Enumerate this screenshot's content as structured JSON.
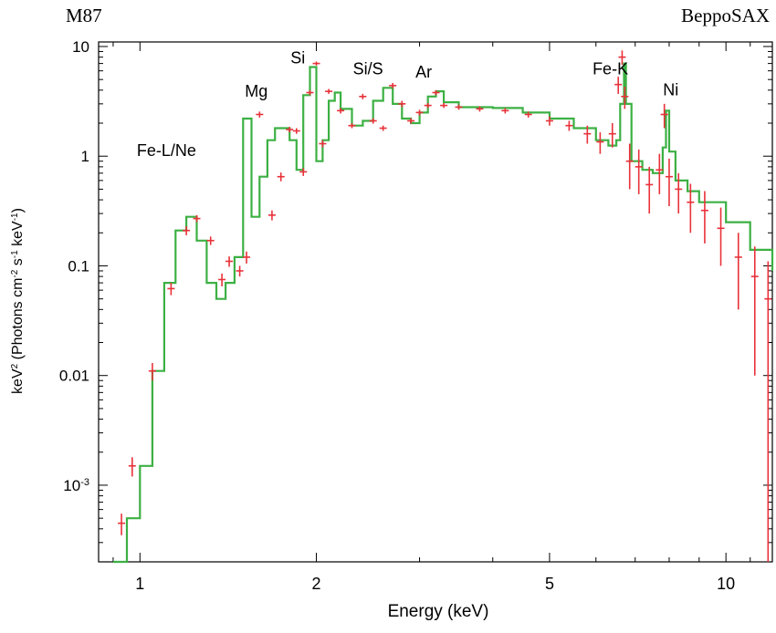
{
  "chart_data": {
    "type": "line",
    "title_left": "M87",
    "title_right": "BeppoSAX",
    "xlabel": "Energy (keV)",
    "ylabel": {
      "main": "keV² (Photons cm⁻² s⁻¹ keV⁻¹)",
      "p1": "keV",
      "s1": "2",
      "p2": " (Photons cm",
      "s2": "-2",
      "p3": " s",
      "s3": "-1",
      "p4": " keV",
      "s4": "-1",
      "p5": ")"
    },
    "x_scale": "log",
    "y_scale": "log",
    "xlim": [
      0.85,
      12.0
    ],
    "ylim": [
      0.0002,
      11
    ],
    "x_ticks": [
      {
        "value": 1,
        "label": "1"
      },
      {
        "value": 2,
        "label": "2"
      },
      {
        "value": 5,
        "label": "5"
      },
      {
        "value": 10,
        "label": "10"
      }
    ],
    "y_ticks": [
      {
        "value": 10,
        "label": "10"
      },
      {
        "value": 1,
        "label": "1"
      },
      {
        "value": 0.1,
        "label": "0.1"
      },
      {
        "value": 0.01,
        "label": "0.01"
      },
      {
        "value": 0.001,
        "label_main": "10",
        "label_sup": "-3"
      }
    ],
    "line_labels": [
      {
        "text": "Fe-L/Ne",
        "energy": 1.11,
        "y": 1.0
      },
      {
        "text": "Mg",
        "energy": 1.58,
        "y": 3.5
      },
      {
        "text": "Si",
        "energy": 1.86,
        "y": 7.0
      },
      {
        "text": "Si/S",
        "energy": 2.45,
        "y": 5.6
      },
      {
        "text": "Ar",
        "energy": 3.05,
        "y": 5.2
      },
      {
        "text": "Fe-K",
        "energy": 6.35,
        "y": 5.6
      },
      {
        "text": "Ni",
        "energy": 8.05,
        "y": 3.6
      }
    ],
    "series": [
      {
        "name": "data",
        "style": "crosses",
        "color": "#e8323a",
        "x": [
          0.93,
          0.97,
          1.05,
          1.13,
          1.2,
          1.25,
          1.32,
          1.38,
          1.42,
          1.48,
          1.52,
          1.6,
          1.68,
          1.74,
          1.8,
          1.85,
          1.9,
          1.95,
          2.0,
          2.05,
          2.1,
          2.2,
          2.3,
          2.4,
          2.5,
          2.6,
          2.7,
          2.8,
          2.9,
          3.0,
          3.1,
          3.2,
          3.3,
          3.5,
          3.8,
          4.2,
          4.6,
          5.0,
          5.4,
          5.8,
          6.1,
          6.4,
          6.55,
          6.65,
          6.72,
          6.85,
          7.1,
          7.4,
          7.7,
          7.85,
          8.0,
          8.3,
          8.7,
          9.2,
          9.8,
          10.5,
          11.2,
          11.8
        ],
        "y": [
          0.00045,
          0.0015,
          0.011,
          0.062,
          0.21,
          0.27,
          0.17,
          0.075,
          0.11,
          0.09,
          0.12,
          2.4,
          0.29,
          0.65,
          1.75,
          1.7,
          0.72,
          3.8,
          7.0,
          1.3,
          3.9,
          2.6,
          1.9,
          3.5,
          2.1,
          1.8,
          4.4,
          3.0,
          2.1,
          2.5,
          2.9,
          3.8,
          2.9,
          2.8,
          2.7,
          2.6,
          2.4,
          2.1,
          1.9,
          1.6,
          1.35,
          1.6,
          4.5,
          8.0,
          3.5,
          0.9,
          0.8,
          0.55,
          0.75,
          2.4,
          0.65,
          0.5,
          0.38,
          0.32,
          0.22,
          0.12,
          0.08,
          0.05
        ],
        "y_err": [
          0.0001,
          0.0003,
          0.002,
          0.008,
          0.02,
          0.02,
          0.015,
          0.01,
          0.012,
          0.01,
          0.015,
          0.15,
          0.03,
          0.06,
          0.1,
          0.1,
          0.06,
          0.2,
          0.3,
          0.1,
          0.2,
          0.15,
          0.1,
          0.2,
          0.12,
          0.1,
          0.25,
          0.2,
          0.12,
          0.15,
          0.15,
          0.2,
          0.15,
          0.15,
          0.15,
          0.15,
          0.15,
          0.2,
          0.2,
          0.3,
          0.3,
          0.4,
          0.8,
          1.2,
          0.8,
          0.4,
          0.35,
          0.25,
          0.3,
          0.6,
          0.3,
          0.2,
          0.18,
          0.16,
          0.12,
          0.08,
          0.07,
          0.06
        ]
      },
      {
        "name": "model",
        "style": "step",
        "color": "#3cb043",
        "x": [
          0.9,
          0.95,
          1.0,
          1.05,
          1.1,
          1.15,
          1.2,
          1.25,
          1.3,
          1.35,
          1.4,
          1.45,
          1.5,
          1.55,
          1.6,
          1.65,
          1.7,
          1.75,
          1.8,
          1.85,
          1.9,
          1.95,
          2.0,
          2.05,
          2.1,
          2.15,
          2.2,
          2.3,
          2.4,
          2.5,
          2.6,
          2.7,
          2.8,
          2.9,
          3.0,
          3.1,
          3.2,
          3.3,
          3.5,
          3.8,
          4.0,
          4.5,
          5.0,
          5.5,
          6.0,
          6.3,
          6.5,
          6.6,
          6.7,
          6.75,
          6.9,
          7.2,
          7.5,
          7.8,
          7.9,
          8.0,
          8.2,
          8.6,
          9.0,
          10.0,
          11.0,
          12.0
        ],
        "y": [
          0.0002,
          0.0005,
          0.0015,
          0.011,
          0.07,
          0.21,
          0.28,
          0.17,
          0.07,
          0.05,
          0.07,
          0.12,
          2.2,
          0.28,
          0.65,
          1.4,
          1.8,
          1.8,
          1.4,
          0.75,
          3.6,
          6.5,
          0.9,
          1.4,
          3.2,
          3.8,
          2.7,
          1.9,
          2.1,
          3.2,
          4.2,
          3.0,
          2.2,
          2.0,
          2.5,
          3.5,
          3.9,
          3.1,
          2.8,
          2.8,
          2.75,
          2.5,
          2.2,
          1.8,
          1.4,
          1.25,
          1.4,
          3.0,
          7.0,
          3.0,
          0.9,
          0.75,
          0.7,
          1.2,
          2.6,
          1.1,
          0.6,
          0.48,
          0.38,
          0.25,
          0.14,
          0.09
        ]
      }
    ]
  }
}
